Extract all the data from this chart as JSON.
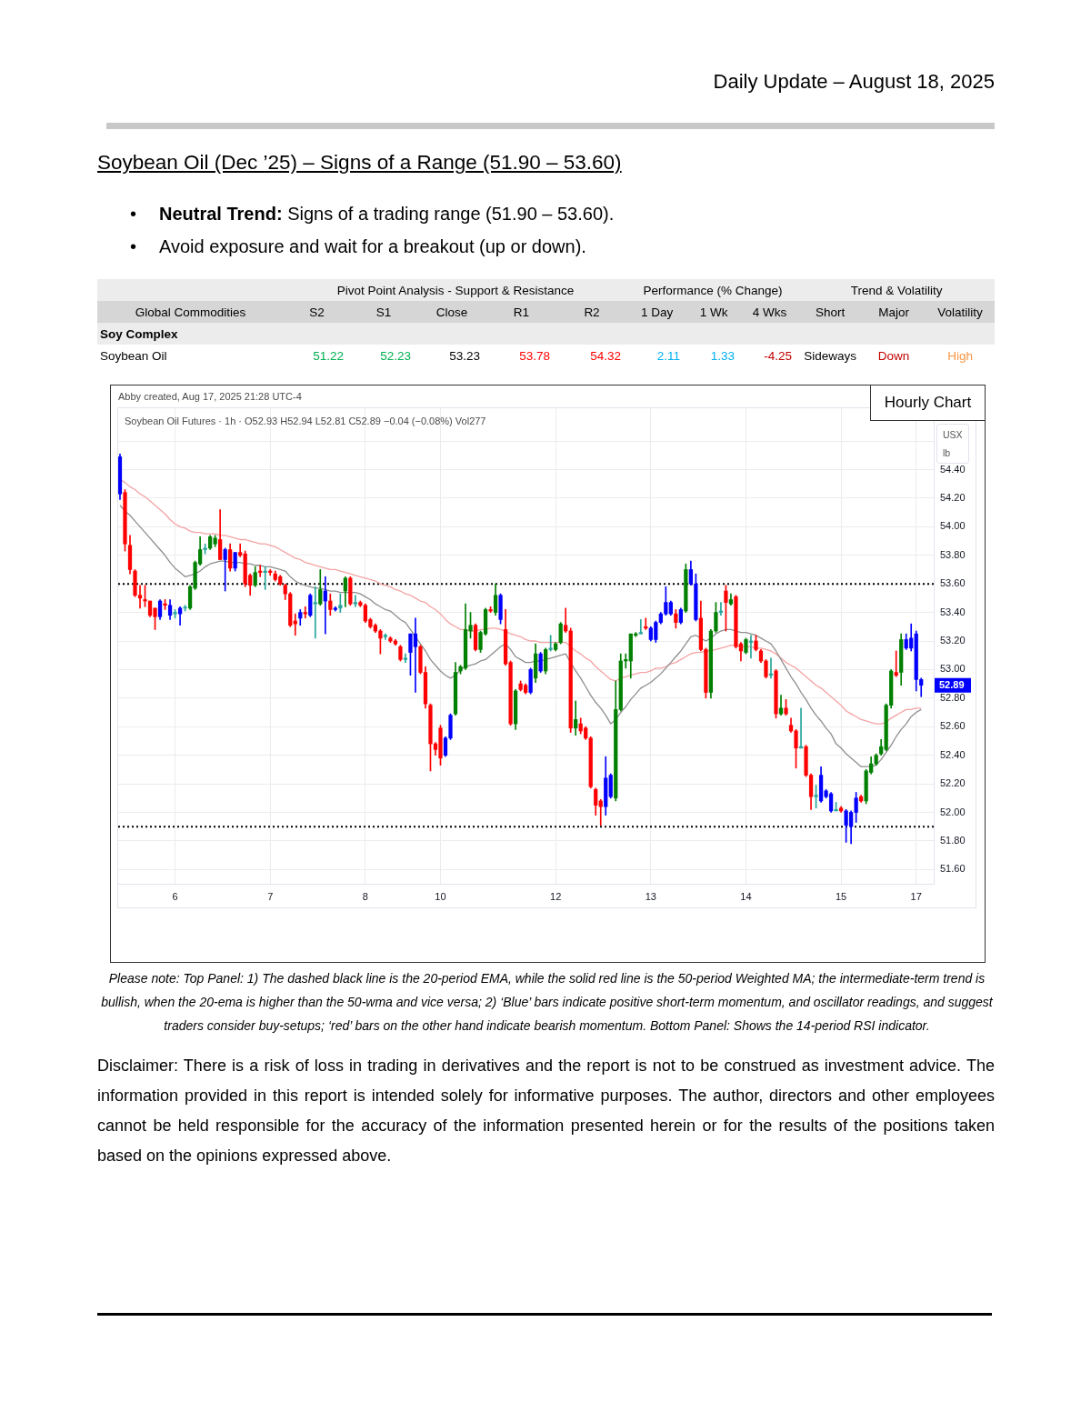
{
  "chart_data": [
    {
      "type": "other",
      "subtitle": "Daily Update – August 18, 2025",
      "title": "Soybean Oil (Dec ’25) – Signs of a Range (51.90 – 53.60)",
      "annotations": [
        "• Neutral Trend: Signs of a trading range (51.90 – 53.60).",
        "• Avoid exposure and wait for a breakout (up or down)."
      ]
    },
    {
      "type": "other",
      "annotations": [
        "Pivot Point Analysis - Support & Resistance",
        "Performance (% Change)",
        "Trend & Volatility"
      ],
      "ylabel": "Global Commodities",
      "categories": [
        "S2",
        "S1",
        "Close",
        "R1",
        "R2",
        "1 Day",
        "1 Wk",
        "4 Wks",
        "Short",
        "Major",
        "Volatility"
      ],
      "y_categories": [
        "Soy Complex",
        "Soybean Oil"
      ],
      "cell_labels": [
        [
          null,
          null,
          null,
          null,
          null,
          null,
          null,
          null,
          null,
          null,
          null
        ],
        [
          "51.22",
          "52.23",
          "53.23",
          "53.78",
          "54.32",
          "2.11",
          "1.33",
          "-4.25",
          "Sideways",
          "Down",
          "High"
        ]
      ]
    },
    {
      "type": "candlestick",
      "title": "Hourly Chart",
      "subtitle": "Soybean Oil Futures · 1h · O52.93 H52.94 L52.81 C52.89 −0.04 (−0.08%) Vol277",
      "ylabel": "USX\nlb",
      "annotations": [
        "Abby created, Aug 17, 2025 21:28 UTC-4",
        {
          "text": "52.89",
          "y": 52.89
        }
      ],
      "categories": [
        null,
        null,
        null,
        null,
        null,
        null,
        null,
        null,
        null,
        null,
        null,
        "6",
        null,
        null,
        null,
        null,
        null,
        null,
        null,
        null,
        null,
        null,
        null,
        null,
        null,
        null,
        null,
        null,
        null,
        null,
        "7",
        null,
        null,
        null,
        null,
        null,
        null,
        null,
        null,
        null,
        null,
        null,
        null,
        null,
        null,
        null,
        null,
        null,
        null,
        "8",
        null,
        null,
        null,
        null,
        null,
        null,
        null,
        null,
        null,
        null,
        null,
        null,
        null,
        null,
        "10",
        null,
        null,
        null,
        null,
        null,
        null,
        null,
        null,
        null,
        null,
        null,
        null,
        null,
        null,
        null,
        null,
        null,
        null,
        null,
        null,
        null,
        null,
        "12",
        null,
        null,
        null,
        null,
        null,
        null,
        null,
        null,
        null,
        null,
        null,
        null,
        null,
        null,
        null,
        null,
        null,
        null,
        "13",
        null,
        null,
        null,
        null,
        null,
        null,
        null,
        null,
        null,
        null,
        null,
        null,
        null,
        null,
        null,
        null,
        null,
        null,
        "14",
        null,
        null,
        null,
        null,
        null,
        null,
        null,
        null,
        null,
        null,
        null,
        null,
        null,
        null,
        null,
        null,
        null,
        null,
        "15",
        null,
        null,
        null,
        null,
        null,
        null,
        null,
        null,
        null,
        null,
        null,
        null,
        null,
        null,
        "17",
        null
      ],
      "ohlc": [
        [
          54.49,
          54.51,
          54.19,
          54.23
        ],
        [
          54.24,
          54.26,
          53.83,
          53.88
        ],
        [
          53.87,
          53.94,
          53.67,
          53.7
        ],
        [
          53.69,
          53.7,
          53.51,
          53.52
        ],
        [
          53.52,
          53.59,
          53.43,
          53.5
        ],
        [
          53.49,
          53.59,
          53.44,
          53.48
        ],
        [
          53.48,
          53.48,
          53.37,
          53.38
        ],
        [
          53.43,
          53.43,
          53.28,
          53.37
        ],
        [
          53.37,
          53.49,
          53.35,
          53.48
        ],
        [
          53.46,
          53.49,
          53.42,
          53.45
        ],
        [
          53.45,
          53.49,
          53.35,
          53.38
        ],
        [
          53.39,
          53.42,
          53.36,
          53.4
        ],
        [
          53.39,
          53.44,
          53.31,
          53.43
        ],
        [
          53.43,
          53.45,
          53.41,
          53.43
        ],
        [
          53.43,
          53.59,
          53.42,
          53.58
        ],
        [
          53.57,
          53.76,
          53.56,
          53.75
        ],
        [
          53.74,
          53.93,
          53.73,
          53.84
        ],
        [
          53.84,
          53.88,
          53.81,
          53.85
        ],
        [
          53.85,
          53.94,
          53.84,
          53.93
        ],
        [
          53.88,
          53.94,
          53.86,
          53.92
        ],
        [
          53.91,
          54.12,
          53.77,
          53.77
        ],
        [
          53.77,
          53.85,
          53.55,
          53.84
        ],
        [
          53.84,
          53.88,
          53.69,
          53.71
        ],
        [
          53.71,
          53.82,
          53.69,
          53.82
        ],
        [
          53.82,
          53.88,
          53.79,
          53.8
        ],
        [
          53.81,
          53.83,
          53.58,
          53.6
        ],
        [
          53.66,
          53.67,
          53.52,
          53.59
        ],
        [
          53.59,
          53.72,
          53.58,
          53.68
        ],
        [
          53.69,
          53.73,
          53.65,
          53.68
        ],
        [
          53.68,
          53.72,
          53.56,
          53.69
        ],
        [
          53.69,
          53.7,
          53.66,
          53.68
        ],
        [
          53.67,
          53.69,
          53.62,
          53.63
        ],
        [
          53.65,
          53.66,
          53.59,
          53.6
        ],
        [
          53.59,
          53.6,
          53.49,
          53.53
        ],
        [
          53.53,
          53.54,
          53.3,
          53.31
        ],
        [
          53.34,
          53.39,
          53.24,
          53.32
        ],
        [
          53.36,
          53.42,
          53.31,
          53.4
        ],
        [
          53.4,
          53.44,
          53.36,
          53.39
        ],
        [
          53.38,
          53.53,
          53.37,
          53.52
        ],
        [
          53.46,
          53.58,
          53.22,
          53.47
        ],
        [
          53.46,
          53.7,
          53.45,
          53.56
        ],
        [
          53.55,
          53.65,
          53.25,
          53.48
        ],
        [
          53.48,
          53.53,
          53.38,
          53.42
        ],
        [
          53.42,
          53.44,
          53.41,
          53.43
        ],
        [
          53.43,
          53.53,
          53.4,
          53.45
        ],
        [
          53.55,
          53.65,
          53.44,
          53.64
        ],
        [
          53.64,
          53.65,
          53.45,
          53.46
        ],
        [
          53.46,
          53.52,
          53.44,
          53.47
        ],
        [
          53.47,
          53.48,
          53.44,
          53.45
        ],
        [
          53.45,
          53.46,
          53.33,
          53.34
        ],
        [
          53.35,
          53.36,
          53.29,
          53.3
        ],
        [
          53.31,
          53.32,
          53.26,
          53.27
        ],
        [
          53.27,
          53.28,
          53.11,
          53.22
        ],
        [
          53.23,
          53.25,
          53.21,
          53.24
        ],
        [
          53.22,
          53.23,
          53.19,
          53.2
        ],
        [
          53.2,
          53.21,
          53.17,
          53.18
        ],
        [
          53.16,
          53.17,
          53.06,
          53.07
        ],
        [
          53.07,
          53.11,
          53.05,
          53.08
        ],
        [
          53.12,
          53.25,
          52.96,
          53.25
        ],
        [
          53.25,
          53.36,
          52.84,
          53.16
        ],
        [
          53.16,
          53.17,
          52.97,
          52.98
        ],
        [
          52.98,
          53.02,
          52.73,
          52.76
        ],
        [
          52.75,
          52.76,
          52.29,
          52.48
        ],
        [
          52.48,
          52.49,
          52.4,
          52.44
        ],
        [
          52.59,
          52.61,
          52.33,
          52.38
        ],
        [
          52.4,
          52.53,
          52.39,
          52.52
        ],
        [
          52.52,
          52.69,
          52.51,
          52.68
        ],
        [
          52.69,
          53.05,
          52.68,
          52.98
        ],
        [
          52.99,
          53.03,
          52.97,
          53.02
        ],
        [
          53.01,
          53.46,
          53.0,
          53.28
        ],
        [
          53.27,
          53.4,
          53.22,
          53.31
        ],
        [
          53.31,
          53.32,
          53.13,
          53.14
        ],
        [
          53.14,
          53.27,
          53.12,
          53.26
        ],
        [
          53.25,
          53.43,
          53.24,
          53.42
        ],
        [
          53.42,
          53.44,
          53.4,
          53.41
        ],
        [
          53.4,
          53.6,
          53.38,
          53.52
        ],
        [
          53.52,
          53.53,
          53.32,
          53.35
        ],
        [
          53.28,
          53.42,
          53.03,
          53.04
        ],
        [
          53.05,
          53.06,
          52.61,
          52.62
        ],
        [
          52.62,
          52.86,
          52.58,
          52.85
        ],
        [
          52.9,
          52.92,
          52.85,
          52.86
        ],
        [
          52.89,
          52.9,
          52.83,
          52.84
        ],
        [
          52.84,
          53.01,
          52.83,
          53.0
        ],
        [
          52.94,
          53.18,
          52.91,
          53.11
        ],
        [
          53.11,
          53.12,
          52.98,
          52.99
        ],
        [
          52.99,
          53.15,
          52.97,
          53.14
        ],
        [
          53.14,
          53.24,
          53.13,
          53.15
        ],
        [
          53.14,
          53.19,
          53.13,
          53.18
        ],
        [
          53.19,
          53.33,
          53.18,
          53.32
        ],
        [
          53.31,
          53.43,
          53.26,
          53.27
        ],
        [
          53.27,
          53.29,
          52.56,
          52.59
        ],
        [
          52.59,
          52.78,
          52.54,
          52.65
        ],
        [
          52.62,
          52.66,
          52.55,
          52.57
        ],
        [
          52.59,
          52.6,
          52.51,
          52.52
        ],
        [
          52.52,
          52.53,
          52.17,
          52.18
        ],
        [
          52.16,
          52.17,
          51.98,
          52.05
        ],
        [
          52.08,
          52.09,
          51.91,
          52.04
        ],
        [
          52.04,
          52.39,
          51.98,
          52.24
        ],
        [
          52.26,
          52.27,
          52.1,
          52.11
        ],
        [
          52.1,
          52.92,
          52.08,
          52.72
        ],
        [
          52.72,
          53.11,
          52.71,
          53.06
        ],
        [
          53.06,
          53.11,
          53.01,
          53.07
        ],
        [
          53.06,
          53.25,
          52.94,
          53.25
        ],
        [
          53.24,
          53.26,
          53.23,
          53.25
        ],
        [
          53.25,
          53.35,
          53.25,
          53.26
        ],
        [
          53.3,
          53.36,
          53.28,
          53.29
        ],
        [
          53.29,
          53.3,
          53.2,
          53.21
        ],
        [
          53.21,
          53.34,
          53.19,
          53.33
        ],
        [
          53.33,
          53.4,
          53.32,
          53.39
        ],
        [
          53.39,
          53.58,
          53.38,
          53.47
        ],
        [
          53.47,
          53.48,
          53.38,
          53.39
        ],
        [
          53.39,
          53.42,
          53.29,
          53.33
        ],
        [
          53.33,
          53.43,
          53.32,
          53.42
        ],
        [
          53.41,
          53.74,
          53.4,
          53.7
        ],
        [
          53.7,
          53.76,
          53.59,
          53.6
        ],
        [
          53.6,
          53.67,
          53.34,
          53.35
        ],
        [
          53.36,
          53.48,
          53.13,
          53.14
        ],
        [
          53.14,
          53.15,
          52.8,
          52.84
        ],
        [
          52.84,
          53.28,
          52.8,
          53.27
        ],
        [
          53.27,
          53.47,
          53.26,
          53.4
        ],
        [
          53.4,
          53.47,
          53.38,
          53.41
        ],
        [
          53.55,
          53.59,
          53.27,
          53.47
        ],
        [
          53.46,
          53.53,
          53.45,
          53.49
        ],
        [
          53.51,
          53.52,
          53.15,
          53.16
        ],
        [
          53.18,
          53.19,
          53.06,
          53.13
        ],
        [
          53.12,
          53.22,
          53.11,
          53.21
        ],
        [
          53.19,
          53.24,
          53.08,
          53.2
        ],
        [
          53.2,
          53.24,
          53.13,
          53.14
        ],
        [
          53.13,
          53.14,
          53.05,
          53.06
        ],
        [
          53.06,
          53.07,
          52.94,
          52.95
        ],
        [
          52.96,
          53.08,
          52.94,
          52.97
        ],
        [
          52.99,
          53.0,
          52.66,
          52.69
        ],
        [
          52.69,
          52.82,
          52.68,
          52.73
        ],
        [
          52.73,
          52.79,
          52.68,
          52.69
        ],
        [
          52.61,
          52.66,
          52.56,
          52.57
        ],
        [
          52.57,
          52.58,
          52.31,
          52.45
        ],
        [
          52.45,
          52.73,
          52.45,
          52.46
        ],
        [
          52.46,
          52.47,
          52.25,
          52.26
        ],
        [
          52.26,
          52.27,
          52.02,
          52.11
        ],
        [
          52.11,
          52.19,
          52.03,
          52.12
        ],
        [
          52.08,
          52.32,
          52.07,
          52.26
        ],
        [
          52.15,
          52.16,
          52.1,
          52.11
        ],
        [
          52.13,
          52.14,
          52.0,
          52.01
        ],
        [
          52.01,
          52.07,
          52.01,
          52.02
        ],
        [
          52.03,
          52.04,
          52.0,
          52.01
        ],
        [
          52.01,
          52.02,
          51.79,
          51.91
        ],
        [
          51.9,
          52.01,
          51.78,
          52.0
        ],
        [
          52.0,
          52.14,
          51.93,
          52.1
        ],
        [
          52.11,
          52.12,
          52.07,
          52.08
        ],
        [
          52.08,
          52.3,
          52.06,
          52.29
        ],
        [
          52.28,
          52.39,
          52.27,
          52.34
        ],
        [
          52.34,
          52.41,
          52.33,
          52.4
        ],
        [
          52.41,
          52.51,
          52.4,
          52.46
        ],
        [
          52.44,
          52.76,
          52.43,
          52.75
        ],
        [
          52.75,
          53.0,
          52.73,
          52.99
        ],
        [
          52.98,
          53.13,
          52.95,
          52.96
        ],
        [
          52.98,
          53.25,
          52.89,
          53.21
        ],
        [
          53.21,
          53.25,
          53.14,
          53.15
        ],
        [
          53.15,
          53.32,
          53.13,
          53.22
        ],
        [
          53.25,
          53.27,
          52.85,
          52.93
        ],
        [
          52.93,
          52.94,
          52.81,
          52.89
        ]
      ],
      "colors": [
        "#0000ff",
        "#ff0000",
        "#ff0000",
        "#ff0000",
        "#ff0000",
        "#ff0000",
        "#ff0000",
        "#ff0000",
        "#0000ff",
        "#ff0000",
        "#0000ff",
        "#26a69a",
        "#0000ff",
        "#26a69a",
        "#008000",
        "#008000",
        "#008000",
        "#26a69a",
        "#008000",
        "#008000",
        "#ff0000",
        "#0000ff",
        "#ff0000",
        "#0000ff",
        "#ff0000",
        "#ff0000",
        "#ff0000",
        "#008000",
        "#ff0000",
        "#26a69a",
        "#ff0000",
        "#ff0000",
        "#ff0000",
        "#ff0000",
        "#ff0000",
        "#ff0000",
        "#0000ff",
        "#ff0000",
        "#0000ff",
        "#26a69a",
        "#008000",
        "#0000ff",
        "#ff0000",
        "#0000ff",
        "#26a69a",
        "#008000",
        "#ff0000",
        "#26a69a",
        "#ff0000",
        "#ff0000",
        "#ff0000",
        "#ff0000",
        "#ff0000",
        "#26a69a",
        "#ff0000",
        "#ff0000",
        "#ff0000",
        "#26a69a",
        "#0000ff",
        "#0000ff",
        "#ff0000",
        "#ff0000",
        "#ff0000",
        "#ff0000",
        "#ff0000",
        "#0000ff",
        "#0000ff",
        "#008000",
        "#008000",
        "#008000",
        "#008000",
        "#ff0000",
        "#008000",
        "#008000",
        "#ff0000",
        "#008000",
        "#0000ff",
        "#ff0000",
        "#ff0000",
        "#008000",
        "#ff0000",
        "#ff0000",
        "#0000ff",
        "#008000",
        "#0000ff",
        "#008000",
        "#26a69a",
        "#008000",
        "#008000",
        "#ff0000",
        "#ff0000",
        "#008000",
        "#ff0000",
        "#ff0000",
        "#ff0000",
        "#ff0000",
        "#ff0000",
        "#0000ff",
        "#0000ff",
        "#008000",
        "#008000",
        "#008000",
        "#008000",
        "#008000",
        "#26a69a",
        "#ff0000",
        "#0000ff",
        "#0000ff",
        "#0000ff",
        "#0000ff",
        "#0000ff",
        "#ff0000",
        "#0000ff",
        "#008000",
        "#0000ff",
        "#0000ff",
        "#ff0000",
        "#ff0000",
        "#008000",
        "#008000",
        "#26a69a",
        "#ff0000",
        "#008000",
        "#ff0000",
        "#ff0000",
        "#008000",
        "#26a69a",
        "#ff0000",
        "#ff0000",
        "#ff0000",
        "#26a69a",
        "#ff0000",
        "#008000",
        "#ff0000",
        "#ff0000",
        "#ff0000",
        "#26a69a",
        "#ff0000",
        "#ff0000",
        "#26a69a",
        "#0000ff",
        "#0000ff",
        "#0000ff",
        "#26a69a",
        "#ff0000",
        "#0000ff",
        "#0000ff",
        "#0000ff",
        "#ff0000",
        "#008000",
        "#008000",
        "#008000",
        "#008000",
        "#008000",
        "#008000",
        "#ff0000",
        "#008000",
        "#0000ff",
        "#0000ff",
        "#0000ff",
        "#0000ff"
      ],
      "series": [
        {
          "type": "line",
          "color": "#8e8e8e",
          "values": [
            54.15,
            54.11,
            54.08,
            54.04,
            54.0,
            53.96,
            53.92,
            53.88,
            53.84,
            53.8,
            53.75,
            53.71,
            53.68,
            53.65,
            53.66,
            53.67,
            53.69,
            53.72,
            53.74,
            53.75,
            53.76,
            53.76,
            53.75,
            53.75,
            53.75,
            53.74,
            53.74,
            53.73,
            53.73,
            53.72,
            53.72,
            53.71,
            53.7,
            53.69,
            53.65,
            53.62,
            53.6,
            53.59,
            53.58,
            53.57,
            53.57,
            53.56,
            53.55,
            53.55,
            53.54,
            53.54,
            53.54,
            53.54,
            53.53,
            53.51,
            53.49,
            53.46,
            53.44,
            53.42,
            53.41,
            53.38,
            53.35,
            53.33,
            53.28,
            53.23,
            53.18,
            53.13,
            53.07,
            53.03,
            52.99,
            52.96,
            52.94,
            52.96,
            53.0,
            53.02,
            53.03,
            53.04,
            53.06,
            53.07,
            53.1,
            53.13,
            53.16,
            53.18,
            53.14,
            53.09,
            53.07,
            53.05,
            53.05,
            53.06,
            53.06,
            53.07,
            53.08,
            53.09,
            53.1,
            53.11,
            53.05,
            52.99,
            52.94,
            52.88,
            52.82,
            52.77,
            52.73,
            52.68,
            52.62,
            52.65,
            52.7,
            52.74,
            52.79,
            52.83,
            52.87,
            52.89,
            52.91,
            52.94,
            52.97,
            53.01,
            53.05,
            53.09,
            53.13,
            53.18,
            53.23,
            53.24,
            53.22,
            53.2,
            53.22,
            53.25,
            53.27,
            53.28,
            53.28,
            53.27,
            53.26,
            53.26,
            53.25,
            53.24,
            53.22,
            53.2,
            53.18,
            53.13,
            53.07,
            53.01,
            52.95,
            52.9,
            52.84,
            52.79,
            52.73,
            52.68,
            52.64,
            52.59,
            52.55,
            52.48,
            52.45,
            52.41,
            52.38,
            52.35,
            52.32,
            52.32,
            52.32,
            52.33,
            52.37,
            52.42,
            52.47,
            52.53,
            52.58,
            52.62,
            52.67,
            52.7,
            52.72
          ]
        },
        {
          "type": "line",
          "color": "#f4a3a3",
          "values": [
            54.33,
            54.31,
            54.28,
            54.26,
            54.23,
            54.21,
            54.18,
            54.15,
            54.12,
            54.09,
            54.05,
            54.02,
            54.0,
            53.99,
            53.97,
            53.96,
            53.96,
            53.95,
            53.95,
            53.95,
            53.94,
            53.94,
            53.93,
            53.92,
            53.91,
            53.91,
            53.9,
            53.89,
            53.88,
            53.88,
            53.87,
            53.86,
            53.84,
            53.82,
            53.8,
            53.78,
            53.77,
            53.75,
            53.74,
            53.73,
            53.72,
            53.71,
            53.7,
            53.7,
            53.69,
            53.68,
            53.67,
            53.66,
            53.65,
            53.64,
            53.63,
            53.62,
            53.6,
            53.59,
            53.58,
            53.56,
            53.55,
            53.53,
            53.52,
            53.5,
            53.48,
            53.47,
            53.44,
            53.42,
            53.39,
            53.35,
            53.32,
            53.3,
            53.28,
            53.28,
            53.27,
            53.27,
            53.28,
            53.28,
            53.29,
            53.29,
            53.28,
            53.27,
            53.25,
            53.24,
            53.23,
            53.21,
            53.2,
            53.2,
            53.19,
            53.19,
            53.19,
            53.19,
            53.19,
            53.19,
            53.16,
            53.13,
            53.11,
            53.08,
            53.06,
            53.02,
            52.99,
            52.96,
            52.93,
            52.92,
            52.94,
            52.95,
            52.96,
            52.97,
            52.98,
            52.98,
            52.99,
            53.01,
            53.01,
            53.02,
            53.04,
            53.05,
            53.07,
            53.09,
            53.11,
            53.12,
            53.12,
            53.13,
            53.13,
            53.14,
            53.15,
            53.16,
            53.17,
            53.17,
            53.16,
            53.16,
            53.16,
            53.15,
            53.15,
            53.14,
            53.13,
            53.11,
            53.08,
            53.05,
            53.03,
            53.01,
            52.98,
            52.95,
            52.92,
            52.89,
            52.87,
            52.84,
            52.81,
            52.78,
            52.75,
            52.71,
            52.69,
            52.67,
            52.65,
            52.64,
            52.63,
            52.62,
            52.62,
            52.63,
            52.66,
            52.68,
            52.7,
            52.72,
            52.72,
            52.73,
            52.73
          ]
        }
      ],
      "ylim": [
        51.5,
        54.83
      ],
      "yticks": [
        {
          "value": 51.6,
          "label": "51.60"
        },
        {
          "value": 51.8,
          "label": "51.80"
        },
        {
          "value": 52.0,
          "label": "52.00"
        },
        {
          "value": 52.2,
          "label": "52.20"
        },
        {
          "value": 52.4,
          "label": "52.40"
        },
        {
          "value": 52.6,
          "label": "52.60"
        },
        {
          "value": 52.8,
          "label": "52.80"
        },
        {
          "value": 53.0,
          "label": "53.00"
        },
        {
          "value": 53.2,
          "label": "53.20"
        },
        {
          "value": 53.4,
          "label": "53.40"
        },
        {
          "value": 53.6,
          "label": "53.60"
        },
        {
          "value": 53.8,
          "label": "53.80"
        },
        {
          "value": 54.0,
          "label": "54.00"
        },
        {
          "value": 54.2,
          "label": "54.20"
        },
        {
          "value": 54.4,
          "label": "54.40"
        },
        {
          "value": 54.6,
          "label": null
        }
      ],
      "grid": true,
      "ref_lines": [
        {
          "axis": "y",
          "value": 53.6,
          "color": "#000000",
          "line_style": "dotted"
        },
        {
          "axis": "y",
          "value": 51.9,
          "color": "#000000",
          "line_style": "dotted"
        }
      ]
    },
    {
      "type": "other",
      "annotations": [
        "Please note: Top Panel: 1) The dashed black line is the 20-period EMA, while the solid red line is the 50-period Weighted MA; the intermediate-term trend is bullish, when the 20-ema is higher than the 50-wma and vice versa; 2) ‘Blue’ bars indicate positive short-term momentum, and oscillator readings, and suggest traders consider buy-setups; ‘red’ bars on the other hand indicate bearish momentum. Bottom Panel: Shows the 14-period RSI indicator.",
        "Disclaimer: There is a risk of loss in trading in derivatives and the report is not to be construed as investment advice. The information provided in this report is intended solely for informative purposes. The author, directors and other employees cannot be held responsible for the accuracy of the information presented herein or for the results of the positions taken based on the opinions expressed above."
      ]
    }
  ]
}
